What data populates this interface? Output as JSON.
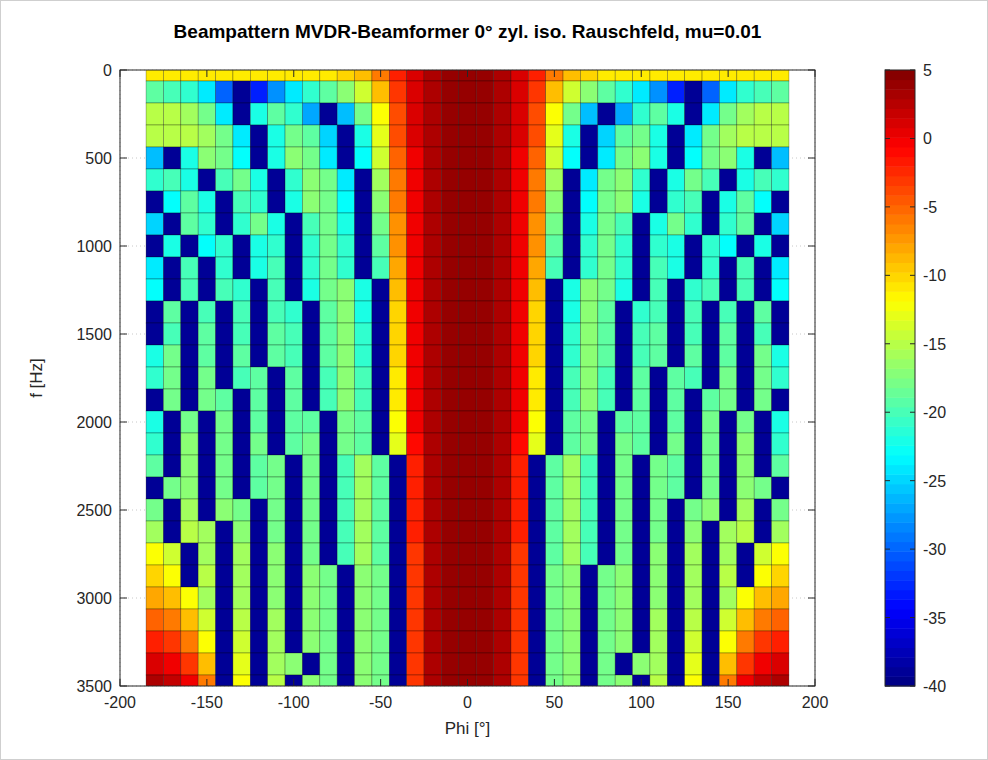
{
  "chart_data": {
    "type": "heatmap",
    "title": "Beampattern MVDR-Beamformer 0° zyl. iso. Rauschfeld, mu=0.01",
    "x_label": "Phi [°]",
    "y_label": "f [Hz]",
    "x": [
      -180,
      -170,
      -160,
      -150,
      -140,
      -130,
      -120,
      -110,
      -100,
      -90,
      -80,
      -70,
      -60,
      -50,
      -40,
      -30,
      -20,
      -10,
      0,
      10,
      20,
      30,
      40,
      50,
      60,
      70,
      80,
      90,
      100,
      110,
      120,
      130,
      140,
      150,
      160,
      170,
      180
    ],
    "y": [
      0,
      125,
      250,
      375,
      500,
      625,
      750,
      875,
      1000,
      1125,
      1250,
      1375,
      1500,
      1625,
      1750,
      1875,
      2000,
      2125,
      2250,
      2375,
      2500,
      2625,
      2750,
      2875,
      3000,
      3125,
      3250,
      3375,
      3500
    ],
    "values": [
      [
        -11,
        -11,
        -11,
        -11,
        -11,
        -11,
        -11,
        -11,
        -11,
        -11,
        -11,
        -10,
        -9,
        -6,
        -2,
        1,
        3,
        4,
        4,
        4,
        3,
        1,
        -2,
        -6,
        -9,
        -10,
        -11,
        -11,
        -11,
        -11,
        -11,
        -11,
        -11,
        -11,
        -11,
        -11,
        -11
      ],
      [
        -19,
        -20,
        -21,
        -24,
        -30,
        -39,
        -33,
        -28,
        -24,
        -21,
        -19,
        -17,
        -14,
        -9,
        -3,
        1,
        3,
        4,
        4,
        4,
        3,
        1,
        -3,
        -9,
        -14,
        -17,
        -19,
        -21,
        -24,
        -28,
        -33,
        -39,
        -30,
        -24,
        -21,
        -20,
        -19
      ],
      [
        -15,
        -15,
        -16,
        -18,
        -24,
        -39,
        -22,
        -19,
        -21,
        -27,
        -39,
        -26,
        -18,
        -12,
        -4,
        1,
        3,
        4,
        4,
        4,
        3,
        1,
        -4,
        -12,
        -18,
        -26,
        -39,
        -27,
        -21,
        -19,
        -22,
        -39,
        -24,
        -18,
        -16,
        -15,
        -15
      ],
      [
        -15,
        -15,
        -15,
        -16,
        -18,
        -24,
        -39,
        -22,
        -18,
        -19,
        -25,
        -39,
        -22,
        -13,
        -4,
        1,
        3,
        4,
        4,
        4,
        3,
        1,
        -4,
        -13,
        -22,
        -39,
        -25,
        -19,
        -18,
        -22,
        -39,
        -24,
        -18,
        -16,
        -15,
        -15,
        -15
      ],
      [
        -26,
        -39,
        -22,
        -17,
        -18,
        -23,
        -39,
        -22,
        -17,
        -18,
        -24,
        -39,
        -23,
        -14,
        -5,
        0,
        3,
        4,
        4,
        4,
        3,
        0,
        -5,
        -14,
        -23,
        -39,
        -24,
        -18,
        -17,
        -22,
        -39,
        -23,
        -18,
        -17,
        -22,
        -39,
        -26
      ],
      [
        -21,
        -20,
        -22,
        -39,
        -20,
        -18,
        -22,
        -39,
        -21,
        -17,
        -18,
        -24,
        -39,
        -16,
        -6,
        0,
        3,
        4,
        4,
        4,
        3,
        0,
        -6,
        -16,
        -39,
        -24,
        -18,
        -17,
        -21,
        -39,
        -22,
        -18,
        -20,
        -39,
        -22,
        -20,
        -21
      ],
      [
        -39,
        -23,
        -19,
        -22,
        -39,
        -20,
        -21,
        -39,
        -22,
        -17,
        -18,
        -23,
        -39,
        -17,
        -6,
        0,
        3,
        4,
        4,
        4,
        3,
        0,
        -6,
        -17,
        -39,
        -23,
        -18,
        -17,
        -22,
        -39,
        -21,
        -20,
        -39,
        -22,
        -19,
        -23,
        -39
      ],
      [
        -25,
        -39,
        -19,
        -21,
        -39,
        -21,
        -18,
        -22,
        -39,
        -20,
        -18,
        -22,
        -39,
        -18,
        -7,
        0,
        3,
        4,
        4,
        4,
        3,
        0,
        -7,
        -18,
        -39,
        -22,
        -18,
        -20,
        -39,
        -22,
        -18,
        -21,
        -39,
        -21,
        -19,
        -39,
        -25
      ],
      [
        -39,
        -22,
        -39,
        -23,
        -21,
        -39,
        -22,
        -21,
        -39,
        -21,
        -18,
        -21,
        -39,
        -19,
        -7,
        0,
        3,
        4,
        4,
        4,
        3,
        0,
        -7,
        -19,
        -39,
        -21,
        -18,
        -21,
        -39,
        -21,
        -22,
        -39,
        -21,
        -23,
        -39,
        -22,
        -39
      ],
      [
        -24,
        -39,
        -20,
        -39,
        -21,
        -39,
        -22,
        -20,
        -39,
        -21,
        -18,
        -21,
        -39,
        -20,
        -8,
        0,
        3,
        4,
        4,
        4,
        3,
        0,
        -8,
        -20,
        -39,
        -21,
        -18,
        -21,
        -39,
        -20,
        -22,
        -39,
        -21,
        -39,
        -20,
        -39,
        -24
      ],
      [
        -23,
        -39,
        -20,
        -39,
        -20,
        -21,
        -39,
        -20,
        -39,
        -22,
        -18,
        -17,
        -22,
        -39,
        -9,
        0,
        3,
        4,
        4,
        4,
        3,
        0,
        -9,
        -39,
        -22,
        -17,
        -18,
        -22,
        -39,
        -20,
        -39,
        -21,
        -20,
        -39,
        -20,
        -39,
        -23
      ],
      [
        -39,
        -19,
        -39,
        -20,
        -39,
        -20,
        -39,
        -20,
        -21,
        -39,
        -19,
        -17,
        -22,
        -39,
        -10,
        0,
        3,
        4,
        4,
        4,
        3,
        0,
        -10,
        -39,
        -22,
        -17,
        -19,
        -39,
        -21,
        -20,
        -39,
        -20,
        -39,
        -20,
        -39,
        -19,
        -39
      ],
      [
        -39,
        -20,
        -39,
        -19,
        -39,
        -20,
        -39,
        -19,
        -20,
        -39,
        -19,
        -17,
        -21,
        -39,
        -10,
        0,
        3,
        4,
        4,
        4,
        3,
        0,
        -10,
        -39,
        -21,
        -17,
        -19,
        -39,
        -20,
        -19,
        -39,
        -20,
        -39,
        -19,
        -39,
        -20,
        -39
      ],
      [
        -22,
        -18,
        -39,
        -19,
        -39,
        -19,
        -39,
        -19,
        -20,
        -39,
        -19,
        -17,
        -21,
        -39,
        -10,
        0,
        3,
        4,
        4,
        4,
        3,
        0,
        -10,
        -39,
        -21,
        -17,
        -19,
        -39,
        -20,
        -19,
        -39,
        -19,
        -39,
        -19,
        -39,
        -18,
        -22
      ],
      [
        -21,
        -18,
        -39,
        -18,
        -39,
        -20,
        -19,
        -39,
        -19,
        -39,
        -20,
        -17,
        -20,
        -39,
        -11,
        0,
        3,
        4,
        4,
        4,
        3,
        0,
        -11,
        -39,
        -20,
        -17,
        -20,
        -39,
        -19,
        -39,
        -19,
        -20,
        -39,
        -18,
        -39,
        -18,
        -21
      ],
      [
        -39,
        -18,
        -39,
        -18,
        -19,
        -39,
        -19,
        -39,
        -19,
        -39,
        -20,
        -17,
        -20,
        -39,
        -11,
        0,
        3,
        4,
        4,
        4,
        3,
        0,
        -11,
        -39,
        -20,
        -17,
        -20,
        -39,
        -19,
        -39,
        -19,
        -39,
        -19,
        -18,
        -39,
        -18,
        -39
      ],
      [
        -22,
        -39,
        -18,
        -39,
        -18,
        -39,
        -19,
        -39,
        -19,
        -19,
        -39,
        -18,
        -19,
        -39,
        -12,
        0,
        3,
        4,
        4,
        4,
        3,
        0,
        -12,
        -39,
        -19,
        -18,
        -39,
        -19,
        -19,
        -39,
        -19,
        -39,
        -18,
        -39,
        -18,
        -39,
        -22
      ],
      [
        -21,
        -39,
        -17,
        -39,
        -18,
        -39,
        -18,
        -39,
        -19,
        -18,
        -39,
        -18,
        -19,
        -39,
        -13,
        -1,
        3,
        4,
        4,
        4,
        3,
        -1,
        -13,
        -39,
        -19,
        -18,
        -39,
        -18,
        -19,
        -39,
        -18,
        -39,
        -18,
        -39,
        -17,
        -39,
        -21
      ],
      [
        -19,
        -39,
        -17,
        -39,
        -18,
        -39,
        -19,
        -18,
        -39,
        -18,
        -39,
        -20,
        -16,
        -19,
        -39,
        -2,
        3,
        4,
        4,
        4,
        3,
        -2,
        -39,
        -19,
        -16,
        -20,
        -39,
        -18,
        -39,
        -18,
        -19,
        -39,
        -18,
        -39,
        -17,
        -39,
        -19
      ],
      [
        -39,
        -18,
        -17,
        -39,
        -18,
        -39,
        -19,
        -18,
        -39,
        -18,
        -39,
        -20,
        -16,
        -19,
        -39,
        -2,
        3,
        4,
        4,
        4,
        3,
        -2,
        -39,
        -19,
        -16,
        -20,
        -39,
        -18,
        -39,
        -18,
        -19,
        -39,
        -18,
        -39,
        -17,
        -18,
        -39
      ],
      [
        -18,
        -39,
        -16,
        -39,
        -17,
        -18,
        -39,
        -18,
        -39,
        -18,
        -39,
        -20,
        -16,
        -19,
        -39,
        -2,
        3,
        4,
        4,
        4,
        3,
        -2,
        -39,
        -19,
        -16,
        -20,
        -39,
        -18,
        -39,
        -18,
        -39,
        -18,
        -17,
        -39,
        -16,
        -39,
        -18
      ],
      [
        -16,
        -39,
        -15,
        -16,
        -39,
        -17,
        -39,
        -18,
        -39,
        -18,
        -39,
        -20,
        -16,
        -19,
        -39,
        -2,
        3,
        4,
        4,
        4,
        3,
        -2,
        -39,
        -19,
        -16,
        -20,
        -39,
        -18,
        -39,
        -18,
        -39,
        -17,
        -39,
        -16,
        -15,
        -39,
        -16
      ],
      [
        -12,
        -14,
        -39,
        -16,
        -39,
        -16,
        -39,
        -17,
        -39,
        -18,
        -39,
        -20,
        -16,
        -19,
        -39,
        -3,
        3,
        4,
        4,
        4,
        3,
        -3,
        -39,
        -19,
        -16,
        -20,
        -39,
        -18,
        -39,
        -17,
        -39,
        -16,
        -39,
        -16,
        -39,
        -14,
        -12
      ],
      [
        -10,
        -12,
        -39,
        -15,
        -39,
        -16,
        -39,
        -17,
        -39,
        -17,
        -18,
        -39,
        -17,
        -18,
        -39,
        -3,
        3,
        4,
        4,
        4,
        3,
        -3,
        -39,
        -18,
        -17,
        -39,
        -18,
        -17,
        -39,
        -17,
        -39,
        -16,
        -39,
        -15,
        -39,
        -12,
        -10
      ],
      [
        -8,
        -9,
        -12,
        -16,
        -39,
        -16,
        -39,
        -17,
        -39,
        -17,
        -18,
        -39,
        -17,
        -18,
        -39,
        -3,
        3,
        4,
        4,
        4,
        3,
        -3,
        -39,
        -18,
        -17,
        -39,
        -18,
        -17,
        -39,
        -17,
        -39,
        -16,
        -39,
        -16,
        -12,
        -9,
        -8
      ],
      [
        -5,
        -6,
        -9,
        -14,
        -39,
        -15,
        -39,
        -16,
        -39,
        -17,
        -18,
        -39,
        -17,
        -18,
        -39,
        -3,
        3,
        4,
        4,
        4,
        3,
        -3,
        -39,
        -18,
        -17,
        -39,
        -18,
        -17,
        -39,
        -16,
        -39,
        -15,
        -39,
        -14,
        -9,
        -6,
        -5
      ],
      [
        -2,
        -3,
        -6,
        -12,
        -39,
        -14,
        -39,
        -16,
        -39,
        -17,
        -18,
        -39,
        -17,
        -18,
        -39,
        -3,
        3,
        4,
        4,
        4,
        3,
        -3,
        -39,
        -18,
        -17,
        -39,
        -18,
        -17,
        -39,
        -16,
        -39,
        -14,
        -39,
        -12,
        -6,
        -3,
        -2
      ],
      [
        1,
        0,
        -3,
        -9,
        -39,
        -13,
        -39,
        -16,
        -17,
        -39,
        -18,
        -39,
        -17,
        -18,
        -39,
        -3,
        3,
        4,
        4,
        4,
        3,
        -3,
        -39,
        -18,
        -17,
        -39,
        -18,
        -39,
        -17,
        -16,
        -39,
        -13,
        -39,
        -9,
        -3,
        0,
        1
      ],
      [
        3,
        2,
        0,
        -6,
        -39,
        -12,
        -39,
        -15,
        -39,
        -17,
        -18,
        -39,
        -17,
        -18,
        -39,
        -3,
        3,
        4,
        4,
        4,
        3,
        -3,
        -39,
        -18,
        -17,
        -39,
        -18,
        -17,
        -39,
        -15,
        -39,
        -12,
        -39,
        -6,
        0,
        2,
        3
      ]
    ],
    "xlim": [
      -200,
      200
    ],
    "xticks": [
      -200,
      -150,
      -100,
      -50,
      0,
      50,
      100,
      150,
      200
    ],
    "ylim": [
      0,
      3500
    ],
    "yticks": [
      0,
      500,
      1000,
      1500,
      2000,
      2500,
      3000,
      3500
    ],
    "color_range": [
      -40,
      5
    ],
    "color_ticks": [
      5,
      0,
      -5,
      -10,
      -15,
      -20,
      -25,
      -30,
      -35,
      -40
    ],
    "grid": true
  }
}
